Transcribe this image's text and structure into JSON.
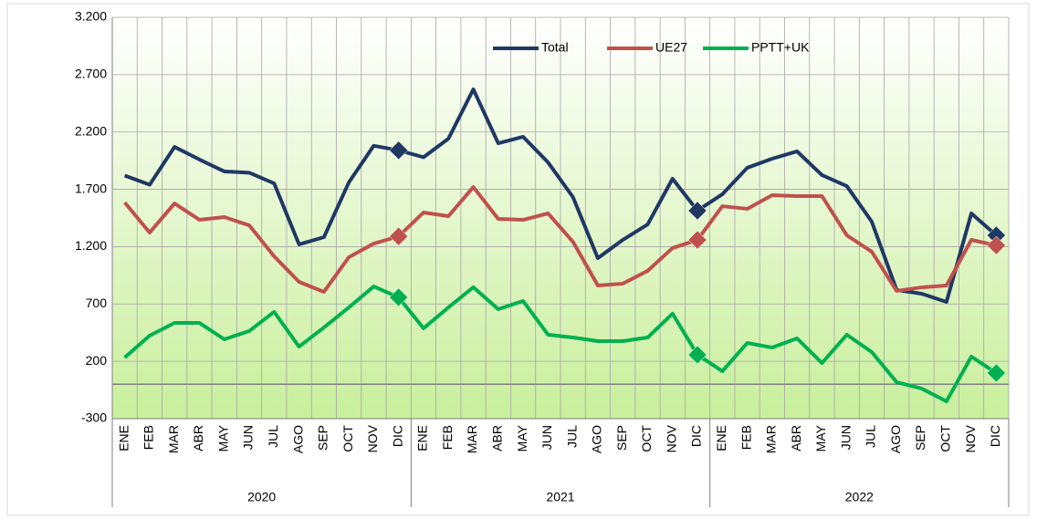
{
  "chart_data": {
    "type": "line",
    "categories": [
      "ENE",
      "FEB",
      "MAR",
      "ABR",
      "MAY",
      "JUN",
      "JUL",
      "AGO",
      "SEP",
      "OCT",
      "NOV",
      "DIC",
      "ENE",
      "FEB",
      "MAR",
      "ABR",
      "MAY",
      "JUN",
      "JUL",
      "AGO",
      "SEP",
      "OCT",
      "NOV",
      "DIC",
      "ENE",
      "FEB",
      "MAR",
      "ABR",
      "MAY",
      "JUN",
      "JUL",
      "AGO",
      "SEP",
      "OCT",
      "NOV",
      "DIC"
    ],
    "groups": [
      "2020",
      "2021",
      "2022"
    ],
    "series": [
      {
        "name": "Total",
        "color": "#1f3864",
        "values": [
          1820,
          1740,
          2070,
          1960,
          1856,
          1845,
          1752,
          1220,
          1283,
          1760,
          2080,
          2040,
          1980,
          2142,
          2572,
          2102,
          2158,
          1935,
          1633,
          1100,
          1259,
          1394,
          1792,
          1514,
          1657,
          1888,
          1967,
          2031,
          1824,
          1728,
          1418,
          822,
          790,
          718,
          1490,
          1299
        ]
      },
      {
        "name": "UE27",
        "color": "#c0504d",
        "values": [
          1585,
          1323,
          1577,
          1434,
          1458,
          1386,
          1116,
          893,
          806,
          1108,
          1227,
          1290,
          1498,
          1466,
          1720,
          1442,
          1434,
          1490,
          1243,
          861,
          877,
          989,
          1188,
          1259,
          1553,
          1530,
          1649,
          1641,
          1641,
          1299,
          1156,
          814,
          845,
          861,
          1259,
          1211
        ]
      },
      {
        "name": "PPTT+UK",
        "color": "#00b050",
        "values": [
          233,
          424,
          535,
          535,
          392,
          464,
          631,
          328,
          495,
          670,
          853,
          758,
          488,
          670,
          846,
          655,
          726,
          432,
          408,
          376,
          376,
          408,
          615,
          257,
          114,
          360,
          320,
          400,
          185,
          432,
          281,
          18,
          -37,
          -149,
          241,
          98
        ]
      }
    ],
    "markers_at": [
      11,
      23,
      35
    ],
    "ylim": [
      -300,
      3200
    ],
    "yticks": [
      -300,
      200,
      700,
      {
        "value": 1200,
        "label": "1.200"
      },
      {
        "value": 1700,
        "label": "1.700"
      },
      {
        "value": 2200,
        "label": "2.200"
      },
      {
        "value": 2700,
        "label": "2.700"
      },
      {
        "value": 3200,
        "label": "3.200"
      }
    ],
    "grid": true,
    "legend": "top"
  }
}
